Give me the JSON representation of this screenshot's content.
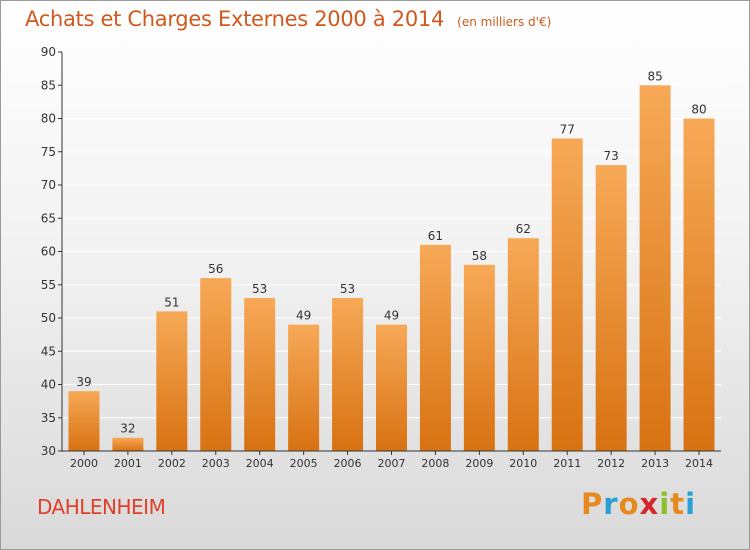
{
  "header": {
    "title": "Achats et Charges Externes 2000 à 2014",
    "subtitle": "(en milliers d'€)"
  },
  "footer": {
    "commune": "DAHLENHEIM",
    "brand_letters": [
      "P",
      "r",
      "o",
      "x",
      "i",
      "t",
      "i"
    ],
    "brand_colors": [
      "#e8891d",
      "#2a9fd6",
      "#e8891d",
      "#d7262a",
      "#8cbf26",
      "#e8891d",
      "#2a9fd6"
    ]
  },
  "colors": {
    "bar_light": "#f7a957",
    "bar_dark": "#d87212",
    "axis": "#333333",
    "grid": "#ffffff",
    "title": "#d05a1e"
  },
  "chart_data": {
    "type": "bar",
    "categories": [
      "2000",
      "2001",
      "2002",
      "2003",
      "2004",
      "2005",
      "2006",
      "2007",
      "2008",
      "2009",
      "2010",
      "2011",
      "2012",
      "2013",
      "2014"
    ],
    "values": [
      39,
      32,
      51,
      56,
      53,
      49,
      53,
      49,
      61,
      58,
      62,
      77,
      73,
      85,
      80
    ],
    "ylim": [
      30,
      90
    ],
    "yticks": [
      30,
      35,
      40,
      45,
      50,
      55,
      60,
      65,
      70,
      75,
      80,
      85,
      90
    ],
    "grid": true,
    "data_labels": true
  }
}
